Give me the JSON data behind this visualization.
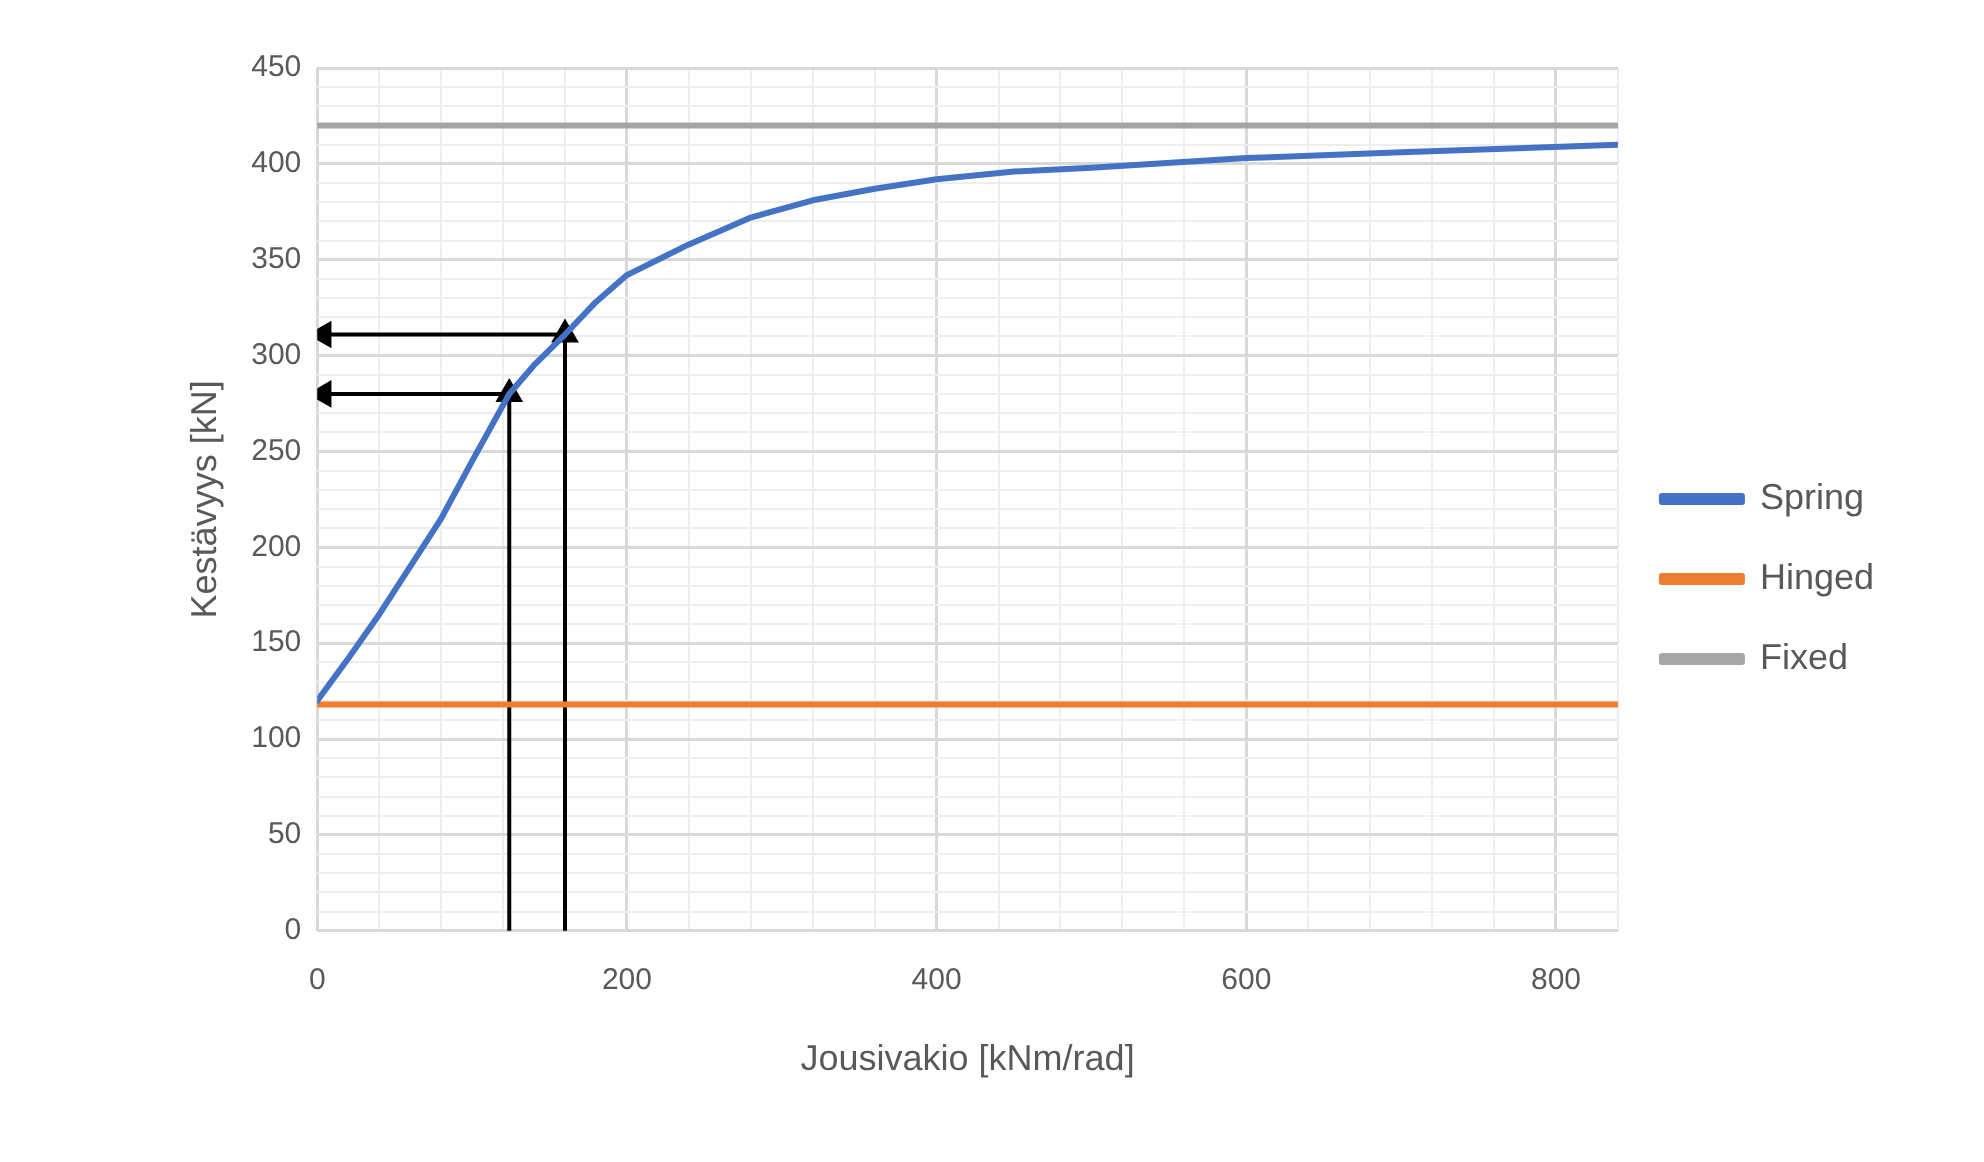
{
  "chart_data": {
    "type": "line",
    "xlabel": "Jousivakio [kNm/rad]",
    "ylabel": "Kestävyys [kN]",
    "xlim": [
      0,
      840
    ],
    "ylim": [
      0,
      450
    ],
    "xticks": [
      0,
      {
        "value": 40,
        "label": null
      },
      {
        "value": 80,
        "label": null
      },
      {
        "value": 120,
        "label": null
      },
      {
        "value": 160,
        "label": null
      },
      200,
      {
        "value": 240,
        "label": null
      },
      {
        "value": 280,
        "label": null
      },
      {
        "value": 320,
        "label": null
      },
      {
        "value": 360,
        "label": null
      },
      400,
      {
        "value": 440,
        "label": null
      },
      {
        "value": 480,
        "label": null
      },
      {
        "value": 520,
        "label": null
      },
      {
        "value": 560,
        "label": null
      },
      600,
      {
        "value": 640,
        "label": null
      },
      {
        "value": 680,
        "label": null
      },
      {
        "value": 720,
        "label": null
      },
      {
        "value": 760,
        "label": null
      },
      800,
      {
        "value": 840,
        "label": null
      }
    ],
    "yticks": [
      0,
      {
        "value": 10,
        "label": null
      },
      {
        "value": 20,
        "label": null
      },
      {
        "value": 30,
        "label": null
      },
      {
        "value": 40,
        "label": null
      },
      50,
      {
        "value": 60,
        "label": null
      },
      {
        "value": 70,
        "label": null
      },
      {
        "value": 80,
        "label": null
      },
      {
        "value": 90,
        "label": null
      },
      100,
      {
        "value": 110,
        "label": null
      },
      {
        "value": 120,
        "label": null
      },
      {
        "value": 130,
        "label": null
      },
      {
        "value": 140,
        "label": null
      },
      150,
      {
        "value": 160,
        "label": null
      },
      {
        "value": 170,
        "label": null
      },
      {
        "value": 180,
        "label": null
      },
      {
        "value": 190,
        "label": null
      },
      200,
      {
        "value": 210,
        "label": null
      },
      {
        "value": 220,
        "label": null
      },
      {
        "value": 230,
        "label": null
      },
      {
        "value": 240,
        "label": null
      },
      250,
      {
        "value": 260,
        "label": null
      },
      {
        "value": 270,
        "label": null
      },
      {
        "value": 280,
        "label": null
      },
      {
        "value": 290,
        "label": null
      },
      300,
      {
        "value": 310,
        "label": null
      },
      {
        "value": 320,
        "label": null
      },
      {
        "value": 330,
        "label": null
      },
      {
        "value": 340,
        "label": null
      },
      350,
      {
        "value": 360,
        "label": null
      },
      {
        "value": 370,
        "label": null
      },
      {
        "value": 380,
        "label": null
      },
      {
        "value": 390,
        "label": null
      },
      400,
      {
        "value": 410,
        "label": null
      },
      {
        "value": 420,
        "label": null
      },
      {
        "value": 430,
        "label": null
      },
      {
        "value": 440,
        "label": null
      },
      450
    ],
    "grid": true,
    "legend": "right",
    "marker": "none",
    "line_style": "solid",
    "series": [
      {
        "name": "Spring",
        "color": "#4472c4",
        "x": [
          0,
          20,
          40,
          60,
          80,
          100,
          124,
          140,
          160,
          180,
          200,
          240,
          280,
          320,
          360,
          400,
          450,
          500,
          600,
          700,
          840
        ],
        "values": [
          120,
          142,
          165,
          190,
          215,
          245,
          280,
          295,
          311,
          328,
          342,
          358,
          372,
          381,
          387,
          392,
          396,
          398,
          403,
          406,
          410
        ]
      },
      {
        "name": "Hinged",
        "color": "#ed7d31",
        "x": [
          0,
          840
        ],
        "values": [
          118,
          118
        ]
      },
      {
        "name": "Fixed",
        "color": "#a5a5a5",
        "x": [
          0,
          840
        ],
        "values": [
          420,
          420
        ]
      },
      {
        "color": "#000000",
        "marker": "triangle",
        "x": [
          124,
          124
        ],
        "values": [
          0,
          280
        ]
      },
      {
        "color": "#000000",
        "marker": "triangle",
        "x": [
          124,
          4
        ],
        "values": [
          280,
          280
        ]
      },
      {
        "color": "#000000",
        "marker": "triangle",
        "x": [
          160,
          160
        ],
        "values": [
          0,
          311
        ]
      },
      {
        "color": "#000000",
        "marker": "triangle",
        "x": [
          160,
          4
        ],
        "values": [
          311,
          311
        ]
      }
    ]
  }
}
